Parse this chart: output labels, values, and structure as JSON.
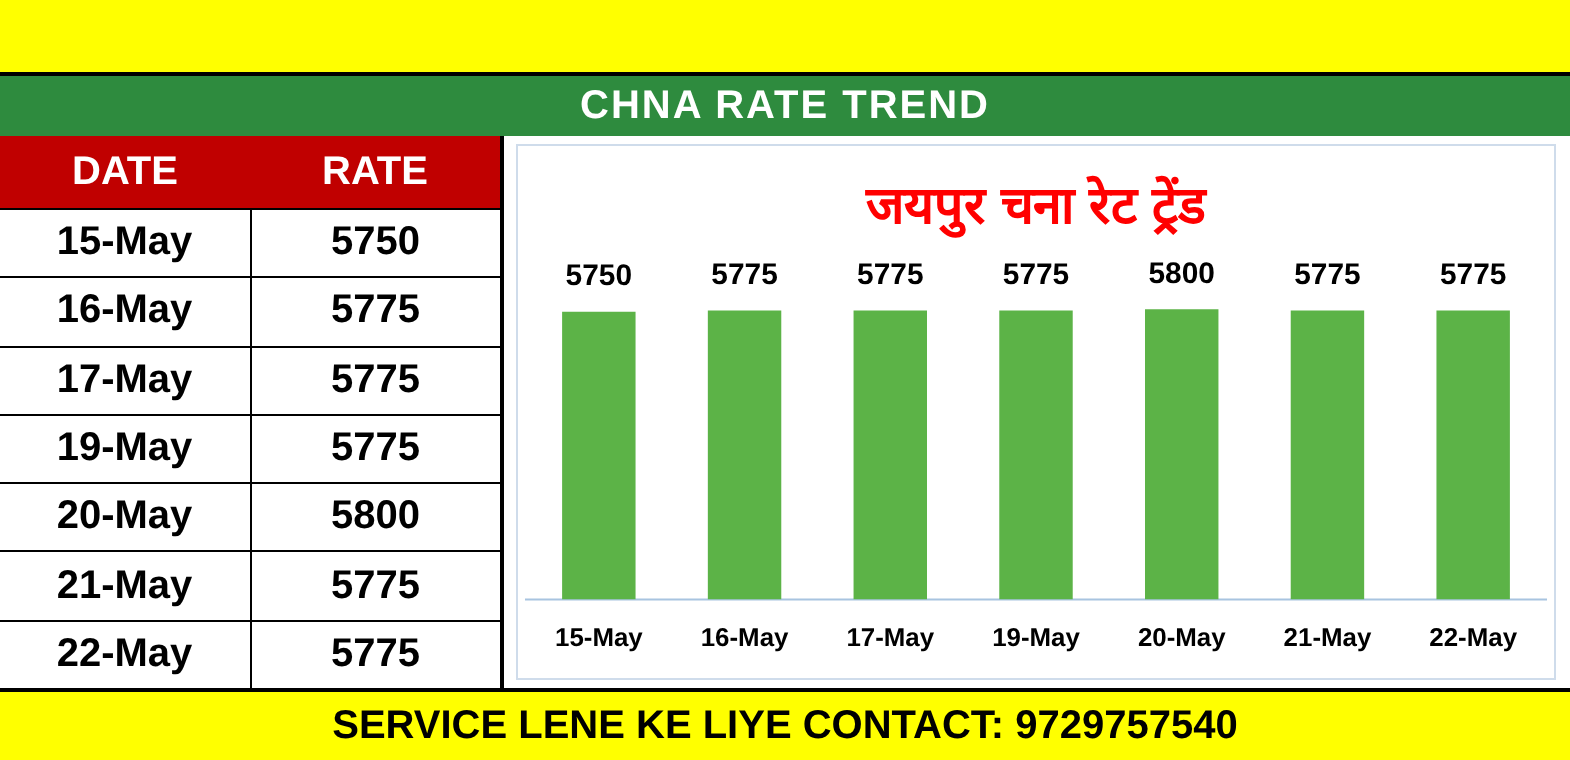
{
  "chart_data": {
    "type": "bar",
    "title": "CHNA RATE TREND",
    "subtitle": "जयपुर चना रेट ट्रेंड",
    "categories": [
      "15-May",
      "16-May",
      "17-May",
      "19-May",
      "20-May",
      "21-May",
      "22-May"
    ],
    "values": [
      5750,
      5775,
      5775,
      5775,
      5800,
      5775,
      5775
    ],
    "value_labels": [
      "5750",
      "5775",
      "5775",
      "5775",
      "5800",
      "5775",
      "5775"
    ],
    "color": "#5cb347",
    "grid": false,
    "legend": false,
    "annotations": [
      "DATE",
      "RATE",
      "SERVICE LENE KE LIYE CONTACT: 9729757540"
    ]
  }
}
